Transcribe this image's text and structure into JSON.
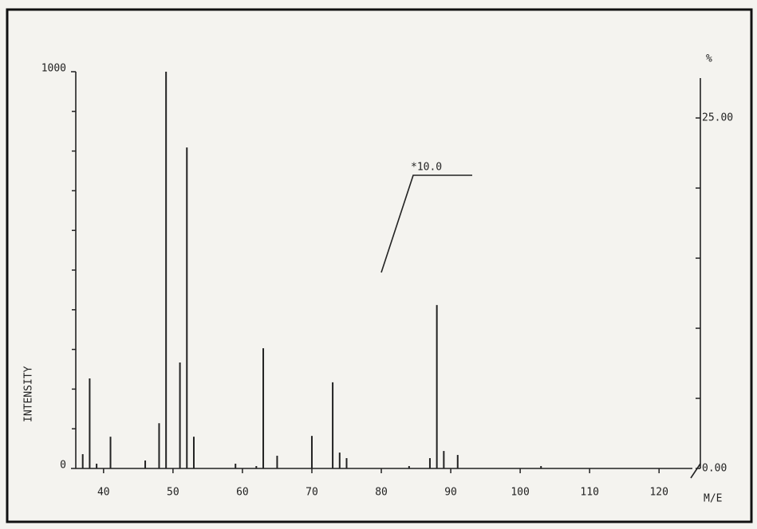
{
  "chart_data": {
    "type": "bar",
    "ylabel": "INTENSITY",
    "xlabel": "M/E",
    "y2label": "%",
    "annotation": "*10.0",
    "x": [
      37,
      38,
      39,
      41,
      46,
      48,
      49,
      51,
      52,
      53,
      59,
      62,
      63,
      65,
      70,
      73,
      74,
      75,
      84,
      87,
      88,
      89,
      91,
      103
    ],
    "values": [
      36,
      227,
      12,
      80,
      20,
      114,
      1000,
      267,
      809,
      80,
      12,
      6,
      303,
      32,
      82,
      217,
      40,
      26,
      6,
      26,
      412,
      44,
      34,
      6
    ],
    "color": "#222222",
    "xlim": [
      36,
      124.8
    ],
    "xticks": [
      40,
      50,
      60,
      70,
      80,
      90,
      100,
      110,
      120
    ],
    "ylim": [
      0,
      1000
    ],
    "yticks": [
      0,
      1000
    ],
    "minor_yticks": [
      100,
      200,
      300,
      400,
      500,
      600,
      700,
      800,
      900
    ],
    "y2lim": [
      0,
      28.3
    ],
    "y2ticks": [
      {
        "value": 0,
        "label": "0.00"
      },
      {
        "value": 25,
        "label": "25.00"
      }
    ],
    "minor_y2ticks": [
      5,
      10,
      15,
      20
    ]
  }
}
